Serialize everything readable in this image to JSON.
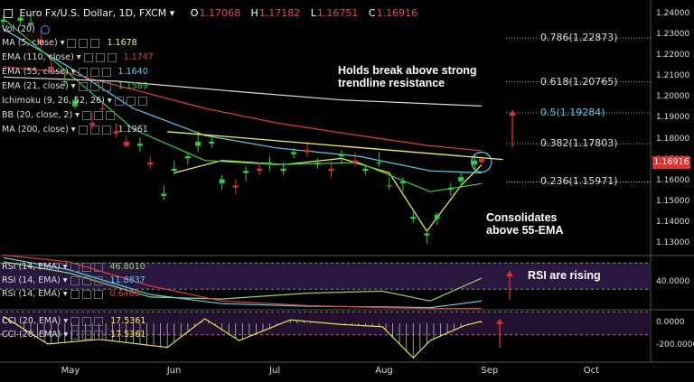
{
  "header": {
    "symbol": "Euro Fx/U.S. Dollar, 1D, FXCM",
    "open_label": "O",
    "open": "1.17068",
    "high_label": "H",
    "high": "1.17182",
    "low_label": "L",
    "low": "1.16751",
    "close_label": "C",
    "close": "1.16916",
    "vol_label": "Vol (20)"
  },
  "indicators": [
    {
      "label": "MA (5, close)",
      "value": "1.1678",
      "color": "#f5f542"
    },
    {
      "label": "EMA (110, close)",
      "value": "1.1747",
      "color": "#e83a3a"
    },
    {
      "label": "EMA (55, close)",
      "value": "1.1640",
      "color": "#4fd3f2"
    },
    {
      "label": "EMA (21, close)",
      "value": "1.1589",
      "color": "#3bd13b"
    },
    {
      "label": "Ichimoku (9, 26, 52, 26)",
      "value": "",
      "color": "#dddddd"
    },
    {
      "label": "BB (20, close, 2)",
      "value": "",
      "color": "#dddddd"
    },
    {
      "label": "MA (200, close)",
      "value": "1.1961",
      "color": "#dddddd"
    }
  ],
  "rsi_panel": [
    {
      "label": "RSI (14, EMA)",
      "value": "46.8010",
      "color": "#9ad26a"
    },
    {
      "label": "RSI (14, EMA)",
      "value": "11.8837",
      "color": "#4fd3f2"
    },
    {
      "label": "RSI (14, EMA)",
      "value": "0.6468",
      "color": "#e83a3a"
    }
  ],
  "cci_panel": [
    {
      "label": "CCI (20, EMA)",
      "value": "17.5361",
      "color": "#f5f542"
    },
    {
      "label": "CCI (20, EMA)",
      "value": "17.5361",
      "color": "#f5f542"
    }
  ],
  "annotations": {
    "breakout": "Holds break above strong\ntrendline resistance",
    "consolidates": "Consolidates\nabove 55-EMA",
    "rsi_rising": "RSI are rising"
  },
  "fib_levels": [
    {
      "label": "0.786(1.22873)",
      "price": 1.22873,
      "color": "#dddddd"
    },
    {
      "label": "0.618(1.20765)",
      "price": 1.20765,
      "color": "#dddddd"
    },
    {
      "label": "0.5(1.19284)",
      "price": 1.19284,
      "color": "#4fd3f2"
    },
    {
      "label": "0.382(1.17803)",
      "price": 1.17803,
      "color": "#dddddd"
    },
    {
      "label": "0.236(1.15971)",
      "price": 1.15971,
      "color": "#dddddd"
    }
  ],
  "current_price_tag": "1.16916",
  "colors": {
    "up": "#2ecc40",
    "down": "#e03030",
    "trendline": "#f5f542",
    "arrow": "#e03030",
    "background": "#000000"
  },
  "chart_data": {
    "type": "candlestick",
    "title": "Euro Fx/U.S. Dollar, 1D, FXCM",
    "x_tick_labels": [
      "May",
      "Jun",
      "Jul",
      "Aug",
      "Sep",
      "Oct"
    ],
    "x_tick_dates": [
      "2018-05-01",
      "2018-06-01",
      "2018-07-01",
      "2018-08-01",
      "2018-09-01",
      "2018-10-01"
    ],
    "x_range": [
      "2018-04-11",
      "2018-10-18"
    ],
    "y_ticks": [
      "1.24000",
      "1.23000",
      "1.22000",
      "1.21000",
      "1.20000",
      "1.19000",
      "1.18000",
      "1.17000",
      "1.16000",
      "1.15000",
      "1.14000",
      "1.13000"
    ],
    "ylim": [
      1.1248,
      1.2435
    ],
    "rsi_ticks": [
      "40.0000"
    ],
    "rsi_ylim": [
      0,
      80
    ],
    "cci_ticks": [
      "0.0000",
      "-200.0000"
    ],
    "cci_ylim": [
      -330,
      110
    ],
    "ohlc": [
      [
        "2018-04-12",
        1.2365,
        1.2395,
        1.2335,
        1.2375
      ],
      [
        "2018-04-17",
        1.237,
        1.24,
        1.2345,
        1.2385
      ],
      [
        "2018-04-20",
        1.235,
        1.2395,
        1.233,
        1.236
      ],
      [
        "2018-04-23",
        1.228,
        1.232,
        1.224,
        1.226
      ],
      [
        "2018-04-26",
        1.215,
        1.221,
        1.212,
        1.214
      ],
      [
        "2018-04-30",
        1.208,
        1.212,
        1.206,
        1.208
      ],
      [
        "2018-05-03",
        1.196,
        1.201,
        1.1945,
        1.199
      ],
      [
        "2018-05-08",
        1.188,
        1.193,
        1.185,
        1.187
      ],
      [
        "2018-05-11",
        1.195,
        1.198,
        1.1915,
        1.1945
      ],
      [
        "2018-05-15",
        1.184,
        1.188,
        1.181,
        1.183
      ],
      [
        "2018-05-18",
        1.179,
        1.182,
        1.176,
        1.177
      ],
      [
        "2018-05-22",
        1.177,
        1.181,
        1.174,
        1.178
      ],
      [
        "2018-05-25",
        1.169,
        1.172,
        1.166,
        1.168
      ],
      [
        "2018-05-29",
        1.153,
        1.158,
        1.151,
        1.154
      ],
      [
        "2018-06-01",
        1.165,
        1.17,
        1.163,
        1.166
      ],
      [
        "2018-06-05",
        1.171,
        1.174,
        1.168,
        1.172
      ],
      [
        "2018-06-08",
        1.177,
        1.184,
        1.174,
        1.179
      ],
      [
        "2018-06-12",
        1.178,
        1.181,
        1.176,
        1.179
      ],
      [
        "2018-06-15",
        1.159,
        1.163,
        1.156,
        1.161
      ],
      [
        "2018-06-19",
        1.158,
        1.161,
        1.154,
        1.157
      ],
      [
        "2018-06-22",
        1.164,
        1.167,
        1.16,
        1.165
      ],
      [
        "2018-06-26",
        1.166,
        1.169,
        1.163,
        1.165
      ],
      [
        "2018-06-29",
        1.168,
        1.172,
        1.165,
        1.169
      ],
      [
        "2018-07-03",
        1.165,
        1.169,
        1.163,
        1.166
      ],
      [
        "2018-07-06",
        1.173,
        1.176,
        1.171,
        1.174
      ],
      [
        "2018-07-10",
        1.175,
        1.179,
        1.172,
        1.174
      ],
      [
        "2018-07-13",
        1.168,
        1.171,
        1.166,
        1.169
      ],
      [
        "2018-07-17",
        1.166,
        1.17,
        1.162,
        1.165
      ],
      [
        "2018-07-20",
        1.172,
        1.175,
        1.169,
        1.173
      ],
      [
        "2018-07-24",
        1.17,
        1.174,
        1.167,
        1.169
      ],
      [
        "2018-07-27",
        1.165,
        1.168,
        1.163,
        1.166
      ],
      [
        "2018-07-31",
        1.169,
        1.174,
        1.167,
        1.169
      ],
      [
        "2018-08-03",
        1.158,
        1.162,
        1.156,
        1.158
      ],
      [
        "2018-08-07",
        1.159,
        1.162,
        1.155,
        1.16
      ],
      [
        "2018-08-10",
        1.142,
        1.147,
        1.14,
        1.143
      ],
      [
        "2018-08-14",
        1.134,
        1.137,
        1.13,
        1.135
      ],
      [
        "2018-08-17",
        1.142,
        1.145,
        1.139,
        1.144
      ],
      [
        "2018-08-21",
        1.156,
        1.159,
        1.153,
        1.157
      ],
      [
        "2018-08-24",
        1.16,
        1.164,
        1.157,
        1.162
      ],
      [
        "2018-08-28",
        1.168,
        1.173,
        1.166,
        1.17
      ],
      [
        "2018-08-30",
        1.1707,
        1.1718,
        1.1675,
        1.1692
      ]
    ],
    "series": [
      {
        "name": "MA (5, close)",
        "color": "#f5f542",
        "x": [
          "2018-06-01",
          "2018-06-15",
          "2018-07-03",
          "2018-07-20",
          "2018-08-03",
          "2018-08-14",
          "2018-08-24",
          "2018-08-30"
        ],
        "y": [
          1.164,
          1.17,
          1.168,
          1.171,
          1.164,
          1.136,
          1.158,
          1.1678
        ]
      },
      {
        "name": "EMA (110, close)",
        "color": "#e83a3a",
        "x": [
          "2018-04-12",
          "2018-05-01",
          "2018-05-20",
          "2018-06-10",
          "2018-07-01",
          "2018-07-25",
          "2018-08-15",
          "2018-08-30"
        ],
        "y": [
          1.215,
          1.212,
          1.204,
          1.195,
          1.188,
          1.182,
          1.177,
          1.1747
        ]
      },
      {
        "name": "EMA (55, close)",
        "color": "#4fd3f2",
        "x": [
          "2018-04-12",
          "2018-05-01",
          "2018-05-20",
          "2018-06-10",
          "2018-07-01",
          "2018-07-25",
          "2018-08-15",
          "2018-08-30"
        ],
        "y": [
          1.233,
          1.215,
          1.195,
          1.182,
          1.176,
          1.172,
          1.165,
          1.164
        ]
      },
      {
        "name": "EMA (21, close)",
        "color": "#3bd13b",
        "x": [
          "2018-04-12",
          "2018-05-01",
          "2018-05-20",
          "2018-06-10",
          "2018-07-01",
          "2018-07-25",
          "2018-08-15",
          "2018-08-30"
        ],
        "y": [
          1.238,
          1.212,
          1.185,
          1.17,
          1.168,
          1.169,
          1.155,
          1.1589
        ]
      },
      {
        "name": "MA (200, close)",
        "color": "#dddddd",
        "x": [
          "2018-04-12",
          "2018-05-15",
          "2018-06-20",
          "2018-07-20",
          "2018-08-30"
        ],
        "y": [
          1.21,
          1.208,
          1.203,
          1.199,
          1.1961
        ]
      }
    ],
    "trendline": {
      "x": [
        "2018-05-30",
        "2018-08-31"
      ],
      "y": [
        1.1838,
        1.17
      ]
    },
    "rsi_series": [
      {
        "name": "RSI (14, EMA)",
        "color": "#9ad26a",
        "x": [
          "2018-04-12",
          "2018-05-01",
          "2018-05-25",
          "2018-06-15",
          "2018-07-10",
          "2018-08-01",
          "2018-08-15",
          "2018-08-30"
        ],
        "y": [
          72,
          55,
          18,
          15,
          24,
          27,
          12,
          46.8
        ]
      },
      {
        "name": "RSI (14, EMA)",
        "color": "#4fd3f2",
        "x": [
          "2018-04-12",
          "2018-05-01",
          "2018-05-25",
          "2018-06-15",
          "2018-07-10",
          "2018-08-01",
          "2018-08-15",
          "2018-08-30"
        ],
        "y": [
          78,
          60,
          22,
          8,
          4,
          3,
          2,
          11.9
        ]
      },
      {
        "name": "RSI (14, EMA)",
        "color": "#e83a3a",
        "x": [
          "2018-04-12",
          "2018-05-01",
          "2018-05-25",
          "2018-06-15",
          "2018-07-10",
          "2018-08-01",
          "2018-08-15",
          "2018-08-30"
        ],
        "y": [
          82,
          72,
          35,
          12,
          5,
          2,
          0.5,
          0.65
        ]
      }
    ],
    "cci_series": {
      "name": "CCI (20, EMA)",
      "color": "#f5f542",
      "x": [
        "2018-04-12",
        "2018-04-25",
        "2018-05-10",
        "2018-05-30",
        "2018-06-10",
        "2018-06-20",
        "2018-07-05",
        "2018-07-20",
        "2018-08-01",
        "2018-08-10",
        "2018-08-15",
        "2018-08-25",
        "2018-08-30"
      ],
      "y": [
        60,
        -180,
        -140,
        -210,
        40,
        -150,
        30,
        -10,
        -30,
        -300,
        -150,
        -20,
        17.5
      ]
    }
  }
}
